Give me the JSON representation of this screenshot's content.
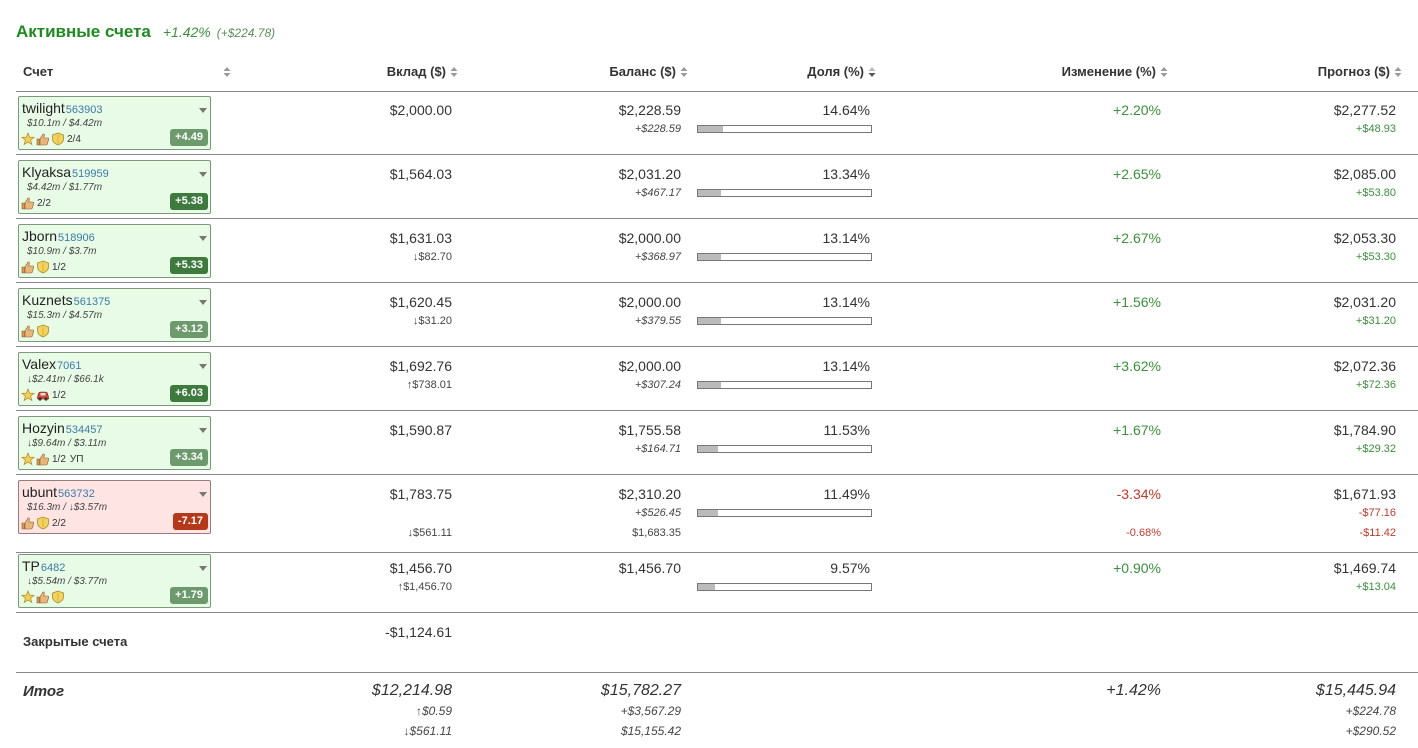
{
  "header": {
    "title": "Активные счета",
    "change_pct": "+1.42%",
    "change_amt": "(+$224.78)"
  },
  "columns": {
    "account": "Счет",
    "deposit": "Вклад ($)",
    "balance": "Баланс ($)",
    "share": "Доля (%)",
    "change": "Изменение (%)",
    "forecast": "Прогноз ($)"
  },
  "rows": [
    {
      "name": "twilight",
      "id": "563903",
      "volume": "$10.1m / $4.42m",
      "icons": [
        "star-icon",
        "thumbs-up-icon",
        "shield-icon"
      ],
      "frac": "2/4",
      "extra": "",
      "score": "+4.49",
      "score_style": "light",
      "negative": false,
      "deposit": "$2,000.00",
      "deposit_sub": "",
      "balance": "$2,228.59",
      "balance_sub": "+$228.59",
      "balance_sub2": "",
      "share": "14.64%",
      "share_value": 14.64,
      "change": "+2.20%",
      "change_sub": "",
      "forecast": "$2,277.52",
      "forecast_sub": "+$48.93",
      "forecast_sub2": ""
    },
    {
      "name": "Klyaksa",
      "id": "519959",
      "volume": "$4.42m / $1.77m",
      "icons": [
        "thumbs-up-icon"
      ],
      "frac": "2/2",
      "extra": "",
      "score": "+5.38",
      "score_style": "dark",
      "negative": false,
      "deposit": "$1,564.03",
      "deposit_sub": "",
      "balance": "$2,031.20",
      "balance_sub": "+$467.17",
      "balance_sub2": "",
      "share": "13.34%",
      "share_value": 13.34,
      "change": "+2.65%",
      "change_sub": "",
      "forecast": "$2,085.00",
      "forecast_sub": "+$53.80",
      "forecast_sub2": ""
    },
    {
      "name": "Jborn",
      "id": "518906",
      "volume": "$10.9m / $3.7m",
      "icons": [
        "thumbs-up-icon",
        "shield-icon"
      ],
      "frac": "1/2",
      "extra": "",
      "score": "+5.33",
      "score_style": "dark",
      "negative": false,
      "deposit": "$1,631.03",
      "deposit_sub": "↓$82.70",
      "balance": "$2,000.00",
      "balance_sub": "+$368.97",
      "balance_sub2": "",
      "share": "13.14%",
      "share_value": 13.14,
      "change": "+2.67%",
      "change_sub": "",
      "forecast": "$2,053.30",
      "forecast_sub": "+$53.30",
      "forecast_sub2": ""
    },
    {
      "name": "Kuznets",
      "id": "561375",
      "volume": "$15.3m / $4.57m",
      "icons": [
        "thumbs-up-icon",
        "shield-icon"
      ],
      "frac": "",
      "extra": "",
      "score": "+3.12",
      "score_style": "light",
      "negative": false,
      "deposit": "$1,620.45",
      "deposit_sub": "↓$31.20",
      "balance": "$2,000.00",
      "balance_sub": "+$379.55",
      "balance_sub2": "",
      "share": "13.14%",
      "share_value": 13.14,
      "change": "+1.56%",
      "change_sub": "",
      "forecast": "$2,031.20",
      "forecast_sub": "+$31.20",
      "forecast_sub2": ""
    },
    {
      "name": "Valex",
      "id": "7061",
      "volume": "↓$2.41m / $66.1k",
      "icons": [
        "star-icon",
        "car-icon"
      ],
      "frac": "1/2",
      "extra": "",
      "score": "+6.03",
      "score_style": "dark",
      "negative": false,
      "deposit": "$1,692.76",
      "deposit_sub": "↑$738.01",
      "balance": "$2,000.00",
      "balance_sub": "+$307.24",
      "balance_sub2": "",
      "share": "13.14%",
      "share_value": 13.14,
      "change": "+3.62%",
      "change_sub": "",
      "forecast": "$2,072.36",
      "forecast_sub": "+$72.36",
      "forecast_sub2": ""
    },
    {
      "name": "Hozyin",
      "id": "534457",
      "volume": "↓$9.64m / $3.11m",
      "icons": [
        "star-icon",
        "thumbs-up-icon"
      ],
      "frac": "1/2",
      "extra": "УП",
      "score": "+3.34",
      "score_style": "light",
      "negative": false,
      "deposit": "$1,590.87",
      "deposit_sub": "",
      "balance": "$1,755.58",
      "balance_sub": "+$164.71",
      "balance_sub2": "",
      "share": "11.53%",
      "share_value": 11.53,
      "change": "+1.67%",
      "change_sub": "",
      "forecast": "$1,784.90",
      "forecast_sub": "+$29.32",
      "forecast_sub2": ""
    },
    {
      "name": "ubunt",
      "id": "563732",
      "volume": "$16.3m / ↓$3.57m",
      "icons": [
        "thumbs-up-icon",
        "shield-icon"
      ],
      "frac": "2/2",
      "extra": "",
      "score": "-7.17",
      "score_style": "red",
      "negative": true,
      "deposit": "$1,783.75",
      "deposit_sub": "↓$561.11",
      "balance": "$2,310.20",
      "balance_sub": "+$526.45",
      "balance_sub2": "$1,683.35",
      "share": "11.49%",
      "share_value": 11.49,
      "change": "-3.34%",
      "change_sub": "-0.68%",
      "forecast": "$1,671.93",
      "forecast_sub": "-$77.16",
      "forecast_sub2": "-$11.42"
    },
    {
      "name": "TP",
      "id": "6482",
      "volume": "↓$5.54m / $3.77m",
      "icons": [
        "star-icon",
        "thumbs-up-icon",
        "shield-icon"
      ],
      "frac": "",
      "extra": "",
      "score": "+1.79",
      "score_style": "light",
      "negative": false,
      "deposit": "$1,456.70",
      "deposit_sub": "↑$1,456.70",
      "balance": "$1,456.70",
      "balance_sub": "",
      "balance_sub2": "",
      "share": "9.57%",
      "share_value": 9.57,
      "change": "+0.90%",
      "change_sub": "",
      "forecast": "$1,469.74",
      "forecast_sub": "+$13.04",
      "forecast_sub2": ""
    }
  ],
  "closed": {
    "label": "Закрытые счета",
    "deposit": "-$1,124.61"
  },
  "total": {
    "label": "Итог",
    "deposit": "$12,214.98",
    "deposit_sub1": "↑$0.59",
    "deposit_sub2": "↓$561.11",
    "balance": "$15,782.27",
    "balance_sub1": "+$3,567.29",
    "balance_sub2": "$15,155.42",
    "change": "+1.42%",
    "forecast": "$15,445.94",
    "forecast_sub1": "+$224.78",
    "forecast_sub2": "+$290.52"
  },
  "colors": {
    "title": "#1f8a1f",
    "positive": "#3c8f3c",
    "negative": "#c0392b",
    "card_positive_bg": "#e8fbe6",
    "card_negative_bg": "#ffe4e4"
  }
}
